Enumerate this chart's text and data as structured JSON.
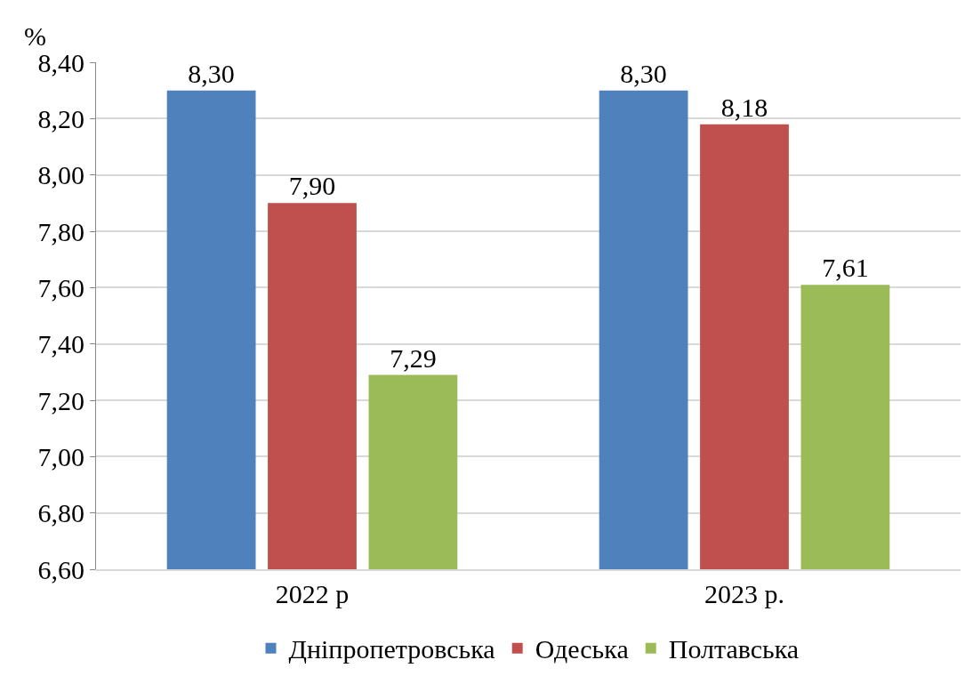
{
  "chart_data": {
    "type": "bar",
    "ylabel": "%",
    "categories": [
      "2022 р",
      "2023 р."
    ],
    "series": [
      {
        "name": "Дніпропетровська",
        "color": "#4f81bd",
        "values": [
          8.3,
          8.3
        ],
        "value_labels": [
          "8,30",
          "8,30"
        ]
      },
      {
        "name": "Одеська",
        "color": "#c0504d",
        "values": [
          7.9,
          8.18
        ],
        "value_labels": [
          "7,90",
          "8,18"
        ]
      },
      {
        "name": "Полтавська",
        "color": "#9bbb59",
        "values": [
          7.29,
          7.61
        ],
        "value_labels": [
          "7,29",
          "7,61"
        ]
      }
    ],
    "ylim": [
      6.6,
      8.4
    ],
    "yticks": [
      {
        "value": 6.6,
        "label": "6,60"
      },
      {
        "value": 6.8,
        "label": "6,80"
      },
      {
        "value": 7.0,
        "label": "7,00"
      },
      {
        "value": 7.2,
        "label": "7,20"
      },
      {
        "value": 7.4,
        "label": "7,40"
      },
      {
        "value": 7.6,
        "label": "7,60"
      },
      {
        "value": 7.8,
        "label": "7,80"
      },
      {
        "value": 8.0,
        "label": "8,00"
      },
      {
        "value": 8.2,
        "label": "8,20"
      },
      {
        "value": 8.4,
        "label": "8,40"
      }
    ],
    "grid": "y",
    "legend": "bottom"
  }
}
